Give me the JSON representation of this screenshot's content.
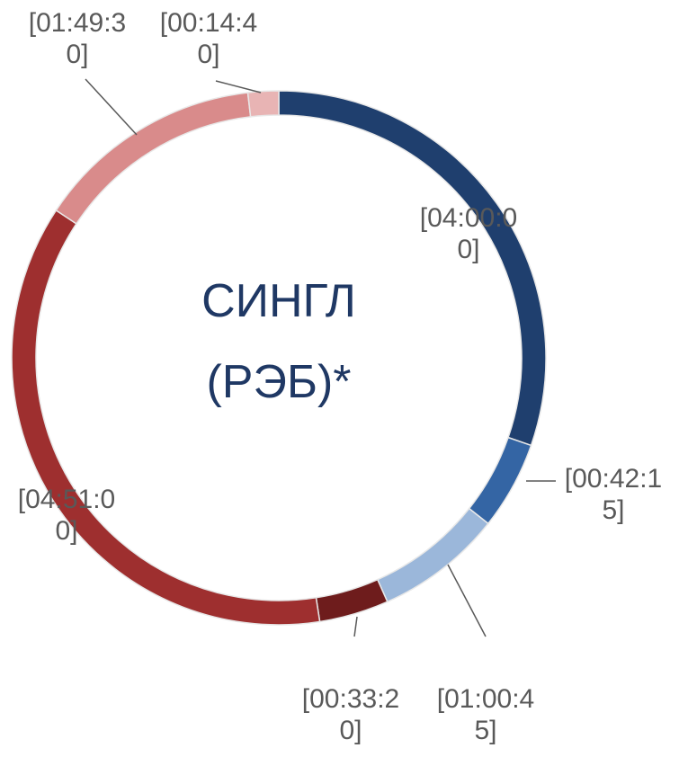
{
  "chart_data": {
    "type": "donut",
    "title": "СИНГЛ (РЭБ)*",
    "categories": [
      null,
      null,
      null,
      null,
      null,
      null,
      null
    ],
    "values": [
      14400,
      2535,
      3645,
      2000,
      17460,
      6570,
      880
    ],
    "value_labels": [
      "[04:00:00]",
      "[00:42:15]",
      "[01:00:45]",
      "[00:33:20]",
      "[04:51:00]",
      "[01:49:30]",
      "[00:14:40]"
    ],
    "colors": [
      "#1f3f6e",
      "#3465a4",
      "#9bb7da",
      "#6e1c1c",
      "#9e2f2f",
      "#d98b8b",
      "#e8b4b4"
    ]
  }
}
